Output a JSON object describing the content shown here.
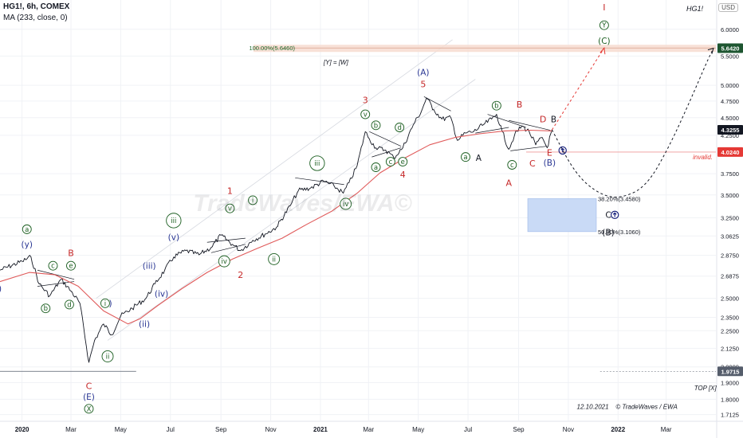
{
  "header": {
    "symbol_line": "HG1!, 6h, COMEX",
    "indicator_line": "MA (233, close, 0)",
    "corner_tag": "HG1!",
    "currency_badge": "USD"
  },
  "chart_data": {
    "type": "line",
    "title": "",
    "xlabel": "",
    "ylabel": "",
    "x_ticks": [
      "2020",
      "Mar",
      "May",
      "Jul",
      "Sep",
      "Nov",
      "2021",
      "Mar",
      "May",
      "Jul",
      "Sep",
      "Nov",
      "2022",
      "Mar"
    ],
    "y_scale": "log",
    "y_ticks": [
      "6.0000",
      "5.5000",
      "5.0000",
      "4.7500",
      "4.5000",
      "4.2500",
      "3.7500",
      "3.5000",
      "3.2500",
      "3.0625",
      "2.8750",
      "2.6875",
      "2.5000",
      "2.3500",
      "2.2500",
      "2.1250",
      "2.0000",
      "1.9000",
      "1.8000",
      "1.7125"
    ],
    "ylim": [
      1.68,
      6.6
    ],
    "xlim": [
      "2019-12-05",
      "2022-05-01"
    ],
    "price_markers": [
      {
        "value": "5.6420",
        "color": "#1e5631"
      },
      {
        "value": "4.3255",
        "color": "#131722"
      },
      {
        "value": "4.0240",
        "color": "#e53935"
      },
      {
        "value": "1.9715",
        "color": "#555d6b"
      }
    ],
    "series": [
      {
        "name": "HG1!",
        "color": "#131722",
        "points": [
          [
            "2019-12-05",
            2.74
          ],
          [
            "2020-01-01",
            2.82
          ],
          [
            "2020-01-12",
            2.86
          ],
          [
            "2020-01-22",
            2.62
          ],
          [
            "2020-02-04",
            2.52
          ],
          [
            "2020-02-18",
            2.66
          ],
          [
            "2020-03-01",
            2.56
          ],
          [
            "2020-03-12",
            2.46
          ],
          [
            "2020-03-23",
            2.03
          ],
          [
            "2020-03-30",
            2.18
          ],
          [
            "2020-04-10",
            2.3
          ],
          [
            "2020-04-20",
            2.22
          ],
          [
            "2020-05-01",
            2.36
          ],
          [
            "2020-05-15",
            2.42
          ],
          [
            "2020-06-01",
            2.5
          ],
          [
            "2020-06-12",
            2.62
          ],
          [
            "2020-06-24",
            2.74
          ],
          [
            "2020-07-05",
            2.86
          ],
          [
            "2020-07-20",
            2.92
          ],
          [
            "2020-08-05",
            2.88
          ],
          [
            "2020-08-20",
            2.95
          ],
          [
            "2020-09-01",
            3.07
          ],
          [
            "2020-09-15",
            2.98
          ],
          [
            "2020-09-25",
            2.92
          ],
          [
            "2020-10-10",
            3.02
          ],
          [
            "2020-10-25",
            3.08
          ],
          [
            "2020-11-08",
            3.15
          ],
          [
            "2020-11-25",
            3.38
          ],
          [
            "2020-12-05",
            3.55
          ],
          [
            "2020-12-20",
            3.58
          ],
          [
            "2021-01-05",
            3.66
          ],
          [
            "2021-01-18",
            3.6
          ],
          [
            "2021-01-29",
            3.52
          ],
          [
            "2021-02-05",
            3.64
          ],
          [
            "2021-02-15",
            3.85
          ],
          [
            "2021-02-25",
            4.3
          ],
          [
            "2021-03-02",
            4.2
          ],
          [
            "2021-03-10",
            4.08
          ],
          [
            "2021-03-22",
            4.05
          ],
          [
            "2021-04-01",
            3.95
          ],
          [
            "2021-04-12",
            4.08
          ],
          [
            "2021-04-25",
            4.4
          ],
          [
            "2021-05-05",
            4.6
          ],
          [
            "2021-05-11",
            4.8
          ],
          [
            "2021-05-20",
            4.62
          ],
          [
            "2021-05-30",
            4.48
          ],
          [
            "2021-06-10",
            4.5
          ],
          [
            "2021-06-18",
            4.18
          ],
          [
            "2021-06-28",
            4.28
          ],
          [
            "2021-07-08",
            4.3
          ],
          [
            "2021-07-20",
            4.4
          ],
          [
            "2021-07-30",
            4.48
          ],
          [
            "2021-08-05",
            4.55
          ],
          [
            "2021-08-12",
            4.3
          ],
          [
            "2021-08-20",
            4.06
          ],
          [
            "2021-08-27",
            4.25
          ],
          [
            "2021-09-05",
            4.38
          ],
          [
            "2021-09-14",
            4.3
          ],
          [
            "2021-09-22",
            4.12
          ],
          [
            "2021-09-30",
            4.22
          ],
          [
            "2021-10-06",
            4.08
          ],
          [
            "2021-10-12",
            4.3255
          ]
        ]
      },
      {
        "name": "MA (233, close, 0)",
        "color": "#e05a5a",
        "points": [
          [
            "2019-12-05",
            2.64
          ],
          [
            "2020-01-10",
            2.72
          ],
          [
            "2020-02-10",
            2.7
          ],
          [
            "2020-03-10",
            2.6
          ],
          [
            "2020-04-10",
            2.4
          ],
          [
            "2020-05-10",
            2.3
          ],
          [
            "2020-05-25",
            2.34
          ],
          [
            "2020-06-15",
            2.44
          ],
          [
            "2020-07-15",
            2.58
          ],
          [
            "2020-08-15",
            2.72
          ],
          [
            "2020-09-15",
            2.84
          ],
          [
            "2020-10-15",
            2.94
          ],
          [
            "2020-11-15",
            3.04
          ],
          [
            "2020-12-15",
            3.18
          ],
          [
            "2021-01-15",
            3.32
          ],
          [
            "2021-02-15",
            3.52
          ],
          [
            "2021-03-15",
            3.76
          ],
          [
            "2021-04-15",
            3.95
          ],
          [
            "2021-05-15",
            4.12
          ],
          [
            "2021-06-15",
            4.22
          ],
          [
            "2021-07-15",
            4.27
          ],
          [
            "2021-08-15",
            4.31
          ],
          [
            "2021-09-15",
            4.32
          ],
          [
            "2021-10-12",
            4.31
          ]
        ]
      }
    ],
    "projection": {
      "bullish_path": {
        "color": "#e53935",
        "points": [
          [
            "2021-10-12",
            4.3255
          ],
          [
            "2021-12-15",
            5.646
          ]
        ]
      },
      "correction_path": {
        "color": "#131722",
        "points": [
          [
            "2021-10-12",
            4.3255
          ],
          [
            "2021-11-10",
            3.74
          ],
          [
            "2021-12-10",
            3.5
          ],
          [
            "2022-01-05",
            3.46
          ],
          [
            "2022-02-05",
            3.6
          ],
          [
            "2022-03-05",
            4.1
          ],
          [
            "2022-04-01",
            4.8
          ],
          [
            "2022-04-20",
            5.4
          ],
          [
            "2022-04-28",
            5.64
          ]
        ]
      }
    },
    "levels": [
      {
        "label": "100.00%(5.6460)",
        "value": 5.646
      },
      {
        "label": "38.20%(3.4580)",
        "value": 3.458
      },
      {
        "label": "50.00%(3.1060)",
        "value": 3.106
      },
      {
        "label": "invalid.",
        "value": 4.024
      }
    ],
    "annotations": [
      {
        "text": "[Y] = [W]",
        "date": "2021-01-20",
        "price": 5.35
      },
      {
        "text": "TOP [X]",
        "date": "2022-04-18",
        "price": 1.855
      },
      {
        "text": "12.10.2021",
        "date": "2021-12-01",
        "price": 1.745
      },
      {
        "text": "© TradeWaves / EWA",
        "date": "2022-02-05",
        "price": 1.745
      },
      {
        "text": "TradeWaves/EWA©",
        "date": "2020-12-10",
        "price": 3.32,
        "watermark": true
      }
    ],
    "wave_labels": [
      {
        "text": "I",
        "date": "2021-12-15",
        "price": 6.45,
        "style": "red"
      },
      {
        "text": "Y",
        "date": "2021-12-15",
        "price": 6.08,
        "style": "circle-green"
      },
      {
        "text": "(C)",
        "date": "2021-12-15",
        "price": 5.78,
        "style": "green"
      },
      {
        "text": "(A)",
        "date": "2021-05-07",
        "price": 5.22,
        "style": "navy"
      },
      {
        "text": "5",
        "date": "2021-05-07",
        "price": 5.02,
        "style": "red"
      },
      {
        "text": "3",
        "date": "2021-02-25",
        "price": 4.77,
        "style": "red"
      },
      {
        "text": "v",
        "date": "2021-02-25",
        "price": 4.55,
        "style": "circle-green"
      },
      {
        "text": "b",
        "date": "2021-03-10",
        "price": 4.39,
        "style": "circle-green"
      },
      {
        "text": "d",
        "date": "2021-04-08",
        "price": 4.36,
        "style": "circle-green"
      },
      {
        "text": "a",
        "date": "2021-03-10",
        "price": 3.83,
        "style": "circle-green"
      },
      {
        "text": "c",
        "date": "2021-03-28",
        "price": 3.9,
        "style": "circle-green"
      },
      {
        "text": "e",
        "date": "2021-04-12",
        "price": 3.9,
        "style": "circle-green"
      },
      {
        "text": "4",
        "date": "2021-04-12",
        "price": 3.74,
        "style": "red"
      },
      {
        "text": "iii",
        "date": "2020-12-28",
        "price": 3.88,
        "style": "circle-green"
      },
      {
        "text": "iv",
        "date": "2021-02-01",
        "price": 3.4,
        "style": "circle-green"
      },
      {
        "text": "1",
        "date": "2020-09-12",
        "price": 3.55,
        "style": "red"
      },
      {
        "text": "v",
        "date": "2020-09-12",
        "price": 3.35,
        "style": "circle-green"
      },
      {
        "text": "i",
        "date": "2020-10-10",
        "price": 3.44,
        "style": "circle-green"
      },
      {
        "text": "iii",
        "date": "2020-07-05",
        "price": 3.22,
        "style": "circle-green"
      },
      {
        "text": "(v)",
        "date": "2020-07-05",
        "price": 3.05,
        "style": "navy"
      },
      {
        "text": "iv",
        "date": "2020-09-05",
        "price": 2.82,
        "style": "circle-green"
      },
      {
        "text": "ii",
        "date": "2020-11-05",
        "price": 2.84,
        "style": "circle-green"
      },
      {
        "text": "2",
        "date": "2020-09-25",
        "price": 2.7,
        "style": "red"
      },
      {
        "text": "(iii)",
        "date": "2020-06-05",
        "price": 2.78,
        "style": "navy"
      },
      {
        "text": "(iv)",
        "date": "2020-06-20",
        "price": 2.54,
        "style": "navy"
      },
      {
        "text": "(i)",
        "date": "2020-04-15",
        "price": 2.46,
        "style": "navy"
      },
      {
        "text": "i",
        "date": "2020-04-12",
        "price": 2.46,
        "style": "circle-green"
      },
      {
        "text": "(ii)",
        "date": "2020-05-30",
        "price": 2.3,
        "style": "navy"
      },
      {
        "text": "ii",
        "date": "2020-04-15",
        "price": 2.07,
        "style": "circle-green"
      },
      {
        "text": "a",
        "date": "2020-01-07",
        "price": 3.13,
        "style": "circle-green"
      },
      {
        "text": "(y)",
        "date": "2020-01-07",
        "price": 2.98,
        "style": "navy"
      },
      {
        "text": "B",
        "date": "2020-03-01",
        "price": 2.9,
        "style": "red"
      },
      {
        "text": "c",
        "date": "2020-02-08",
        "price": 2.78,
        "style": "circle-green"
      },
      {
        "text": "e",
        "date": "2020-03-01",
        "price": 2.78,
        "style": "circle-green"
      },
      {
        "text": "b",
        "date": "2020-01-30",
        "price": 2.42,
        "style": "circle-green"
      },
      {
        "text": "d",
        "date": "2020-02-28",
        "price": 2.45,
        "style": "circle-green"
      },
      {
        "text": "C",
        "date": "2020-03-23",
        "price": 1.88,
        "style": "red"
      },
      {
        "text": "(E)",
        "date": "2020-03-23",
        "price": 1.815,
        "style": "navy"
      },
      {
        "text": "X",
        "date": "2020-03-23",
        "price": 1.745,
        "style": "circle-green"
      },
      {
        "text": ")",
        "date": "2019-12-05",
        "price": 2.58,
        "style": "navy"
      },
      {
        "text": "b",
        "date": "2021-08-05",
        "price": 4.68,
        "style": "circle-green"
      },
      {
        "text": "B",
        "date": "2021-09-02",
        "price": 4.7,
        "style": "red"
      },
      {
        "text": "D",
        "date": "2021-10-01",
        "price": 4.48,
        "style": "red"
      },
      {
        "text": "B",
        "date": "2021-10-14",
        "price": 4.48,
        "style": "black"
      },
      {
        "text": "a",
        "date": "2021-06-28",
        "price": 3.96,
        "style": "circle-green"
      },
      {
        "text": "A",
        "date": "2021-07-14",
        "price": 3.95,
        "style": "black"
      },
      {
        "text": "c",
        "date": "2021-08-24",
        "price": 3.86,
        "style": "circle-green"
      },
      {
        "text": "C",
        "date": "2021-09-18",
        "price": 3.88,
        "style": "red"
      },
      {
        "text": "E",
        "date": "2021-10-09",
        "price": 4.02,
        "style": "red"
      },
      {
        "text": "(B)",
        "date": "2021-10-09",
        "price": 3.89,
        "style": "navy"
      },
      {
        "text": "A",
        "date": "2021-08-20",
        "price": 3.64,
        "style": "red"
      },
      {
        "text": "C",
        "date": "2021-12-20",
        "price": 3.28,
        "style": "black"
      },
      {
        "text": "(B)",
        "date": "2021-12-20",
        "price": 3.1,
        "style": "black"
      }
    ],
    "grid": true,
    "legend": "none"
  }
}
